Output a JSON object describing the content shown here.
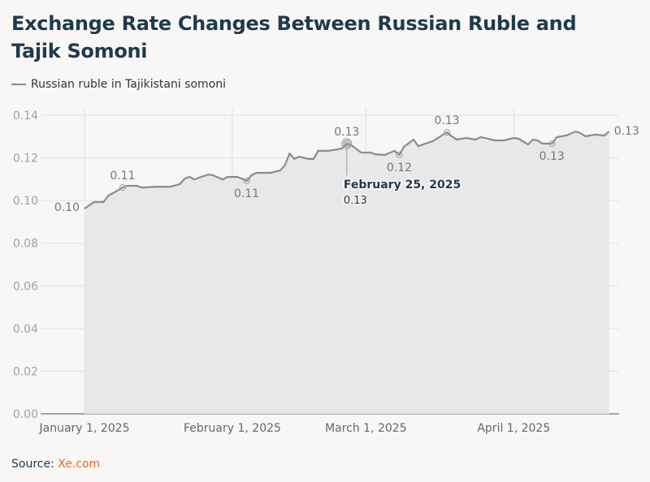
{
  "title": "Exchange Rate Changes Between Russian Ruble and Tajik Somoni",
  "source": {
    "label": "Source:",
    "link_text": "Xe.com"
  },
  "colors": {
    "line": "#8a8a90",
    "area": "#e8e8e8",
    "title": "#1f3a4d",
    "source_link": "#f0661e"
  },
  "tooltip": {
    "date": "February 25, 2025",
    "value": "0.13"
  },
  "chart_data": {
    "type": "area",
    "title": "Exchange Rate Changes Between Russian Ruble and Tajik Somoni",
    "xlabel": "",
    "ylabel": "",
    "ylim": [
      0,
      0.14
    ],
    "yticks": [
      "0.00",
      "0.02",
      "0.04",
      "0.06",
      "0.08",
      "0.10",
      "0.12",
      "0.14"
    ],
    "xticks": [
      {
        "date": "2025-01-01",
        "label": "January 1, 2025"
      },
      {
        "date": "2025-02-01",
        "label": "February 1, 2025"
      },
      {
        "date": "2025-03-01",
        "label": "March 1, 2025"
      },
      {
        "date": "2025-04-01",
        "label": "April 1, 2025"
      }
    ],
    "grid": true,
    "legend_placement": "top-left",
    "series": [
      {
        "name": "Russian ruble in Tajikistani somoni",
        "points": [
          [
            "2025-01-01",
            0.0962
          ],
          [
            "2025-01-03",
            0.0993
          ],
          [
            "2025-01-05",
            0.0993
          ],
          [
            "2025-01-06",
            0.1023
          ],
          [
            "2025-01-07",
            0.1035
          ],
          [
            "2025-01-09",
            0.1061
          ],
          [
            "2025-01-10",
            0.1069
          ],
          [
            "2025-01-12",
            0.1069
          ],
          [
            "2025-01-13",
            0.1061
          ],
          [
            "2025-01-16",
            0.1065
          ],
          [
            "2025-01-19",
            0.1065
          ],
          [
            "2025-01-21",
            0.1077
          ],
          [
            "2025-01-22",
            0.1103
          ],
          [
            "2025-01-23",
            0.1111
          ],
          [
            "2025-01-24",
            0.1099
          ],
          [
            "2025-01-26",
            0.1115
          ],
          [
            "2025-01-27",
            0.1122
          ],
          [
            "2025-01-28",
            0.1118
          ],
          [
            "2025-01-30",
            0.1099
          ],
          [
            "2025-01-31",
            0.1111
          ],
          [
            "2025-02-02",
            0.1111
          ],
          [
            "2025-02-03",
            0.1103
          ],
          [
            "2025-02-04",
            0.1092
          ],
          [
            "2025-02-05",
            0.1118
          ],
          [
            "2025-02-06",
            0.113
          ],
          [
            "2025-02-08",
            0.113
          ],
          [
            "2025-02-09",
            0.113
          ],
          [
            "2025-02-11",
            0.1141
          ],
          [
            "2025-02-12",
            0.1164
          ],
          [
            "2025-02-13",
            0.1221
          ],
          [
            "2025-02-14",
            0.1195
          ],
          [
            "2025-02-15",
            0.1206
          ],
          [
            "2025-02-17",
            0.1195
          ],
          [
            "2025-02-18",
            0.1195
          ],
          [
            "2025-02-19",
            0.1233
          ],
          [
            "2025-02-21",
            0.1233
          ],
          [
            "2025-02-23",
            0.124
          ],
          [
            "2025-02-24",
            0.1244
          ],
          [
            "2025-02-25",
            0.1267
          ],
          [
            "2025-02-26",
            0.1259
          ],
          [
            "2025-02-28",
            0.1225
          ],
          [
            "2025-03-02",
            0.1225
          ],
          [
            "2025-03-03",
            0.1217
          ],
          [
            "2025-03-05",
            0.1214
          ],
          [
            "2025-03-07",
            0.1233
          ],
          [
            "2025-03-08",
            0.1214
          ],
          [
            "2025-03-09",
            0.1252
          ],
          [
            "2025-03-11",
            0.1286
          ],
          [
            "2025-03-12",
            0.1255
          ],
          [
            "2025-03-14",
            0.1271
          ],
          [
            "2025-03-15",
            0.1278
          ],
          [
            "2025-03-18",
            0.132
          ],
          [
            "2025-03-19",
            0.1301
          ],
          [
            "2025-03-20",
            0.1286
          ],
          [
            "2025-03-22",
            0.1293
          ],
          [
            "2025-03-24",
            0.1286
          ],
          [
            "2025-03-25",
            0.1297
          ],
          [
            "2025-03-26",
            0.1293
          ],
          [
            "2025-03-28",
            0.1282
          ],
          [
            "2025-03-30",
            0.1282
          ],
          [
            "2025-04-01",
            0.1293
          ],
          [
            "2025-04-02",
            0.129
          ],
          [
            "2025-04-04",
            0.1263
          ],
          [
            "2025-04-05",
            0.1286
          ],
          [
            "2025-04-06",
            0.1282
          ],
          [
            "2025-04-07",
            0.1267
          ],
          [
            "2025-04-09",
            0.1267
          ],
          [
            "2025-04-10",
            0.1297
          ],
          [
            "2025-04-12",
            0.1305
          ],
          [
            "2025-04-14",
            0.1324
          ],
          [
            "2025-04-15",
            0.1316
          ],
          [
            "2025-04-16",
            0.1301
          ],
          [
            "2025-04-18",
            0.1309
          ],
          [
            "2025-04-20",
            0.1305
          ],
          [
            "2025-04-21",
            0.1324
          ]
        ]
      }
    ],
    "annotations": [
      {
        "date": "2025-01-01",
        "value": 0.0962,
        "label": "0.10",
        "position": "left",
        "marker": false
      },
      {
        "date": "2025-01-09",
        "value": 0.1061,
        "label": "0.11",
        "position": "above",
        "marker": true
      },
      {
        "date": "2025-02-04",
        "value": 0.1092,
        "label": "0.11",
        "position": "below",
        "marker": true
      },
      {
        "date": "2025-02-25",
        "value": 0.1267,
        "label": "0.13",
        "position": "above",
        "marker": true
      },
      {
        "date": "2025-03-08",
        "value": 0.1214,
        "label": "0.12",
        "position": "below",
        "marker": true
      },
      {
        "date": "2025-03-18",
        "value": 0.132,
        "label": "0.13",
        "position": "above",
        "marker": true
      },
      {
        "date": "2025-04-09",
        "value": 0.1267,
        "label": "0.13",
        "position": "below",
        "marker": true
      },
      {
        "date": "2025-04-21",
        "value": 0.1324,
        "label": "0.13",
        "position": "right",
        "marker": false
      }
    ]
  }
}
